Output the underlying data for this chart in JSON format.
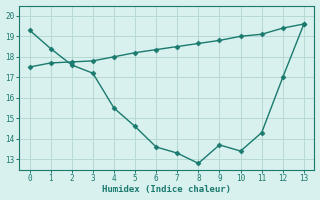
{
  "x_main": [
    0,
    1,
    2,
    3,
    4,
    5,
    6,
    7,
    8,
    9,
    10,
    11,
    12,
    13
  ],
  "y_main": [
    19.3,
    18.4,
    17.6,
    17.2,
    15.5,
    14.6,
    13.6,
    13.3,
    12.8,
    13.7,
    13.4,
    14.3,
    17.0,
    19.6
  ],
  "x_line2": [
    0,
    1,
    2,
    3,
    4,
    5,
    6,
    7,
    8,
    9,
    10,
    11,
    12,
    13
  ],
  "y_line2": [
    17.5,
    17.7,
    17.75,
    17.8,
    18.0,
    18.2,
    18.35,
    18.5,
    18.65,
    18.8,
    19.0,
    19.1,
    19.4,
    19.6
  ],
  "line_color": "#1a7a6e",
  "bg_color": "#d8f0ee",
  "grid_color": "#b8d8d4",
  "xlabel": "Humidex (Indice chaleur)",
  "ylim": [
    12.5,
    20.5
  ],
  "xlim": [
    -0.5,
    13.5
  ],
  "yticks": [
    13,
    14,
    15,
    16,
    17,
    18,
    19,
    20
  ],
  "xticks": [
    0,
    1,
    2,
    3,
    4,
    5,
    6,
    7,
    8,
    9,
    10,
    11,
    12,
    13
  ]
}
